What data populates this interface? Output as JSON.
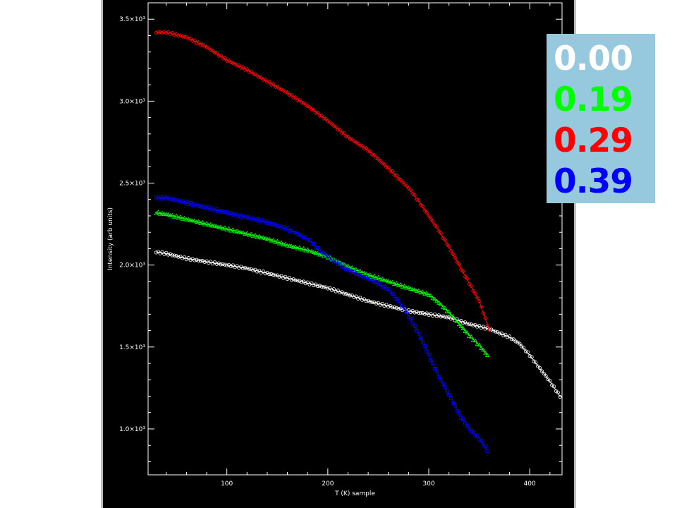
{
  "chart_data": {
    "type": "scatter",
    "xlabel": "T (K) sample",
    "ylabel": "Intensity (arb units)",
    "xlim": [
      22,
      432
    ],
    "ylim": [
      0.72,
      3.6
    ],
    "x_ticks": [
      100,
      200,
      300,
      400
    ],
    "x_tick_labels": [
      "100",
      "200",
      "300",
      "400"
    ],
    "y_ticks": [
      1.0,
      1.5,
      2.0,
      2.5,
      3.0,
      3.5
    ],
    "y_tick_labels": [
      "1.0×10³",
      "1.5×10³",
      "2.0×10³",
      "2.5×10³",
      "3.0×10³",
      "3.5×10³"
    ],
    "background": "#000000",
    "legend_position": "top-right",
    "legend_background": "#97c9de",
    "series": [
      {
        "name": "0.00",
        "color": "#ffffff",
        "marker": "circle",
        "x": [
          30,
          40,
          60,
          80,
          100,
          120,
          140,
          160,
          180,
          200,
          220,
          240,
          260,
          280,
          300,
          320,
          340,
          360,
          380,
          390,
          400,
          410,
          420,
          430
        ],
        "y": [
          2.08,
          2.07,
          2.04,
          2.02,
          2.0,
          1.98,
          1.95,
          1.92,
          1.89,
          1.86,
          1.82,
          1.78,
          1.75,
          1.72,
          1.7,
          1.68,
          1.64,
          1.61,
          1.56,
          1.52,
          1.45,
          1.37,
          1.29,
          1.2
        ]
      },
      {
        "name": "0.19",
        "color": "#00ff00",
        "marker": "triangle",
        "x": [
          30,
          40,
          60,
          80,
          100,
          120,
          140,
          160,
          180,
          200,
          220,
          240,
          260,
          280,
          300,
          310,
          320,
          330,
          340,
          350,
          358
        ],
        "y": [
          2.32,
          2.31,
          2.28,
          2.25,
          2.22,
          2.19,
          2.16,
          2.12,
          2.09,
          2.05,
          1.99,
          1.94,
          1.9,
          1.86,
          1.82,
          1.77,
          1.71,
          1.64,
          1.57,
          1.51,
          1.45
        ]
      },
      {
        "name": "0.29",
        "color": "#ff0000",
        "marker": "diamond",
        "x": [
          30,
          40,
          60,
          80,
          100,
          120,
          140,
          160,
          180,
          200,
          220,
          240,
          260,
          280,
          290,
          300,
          310,
          320,
          330,
          340,
          350,
          355,
          360
        ],
        "y": [
          3.42,
          3.42,
          3.39,
          3.33,
          3.25,
          3.19,
          3.12,
          3.05,
          2.97,
          2.88,
          2.78,
          2.7,
          2.59,
          2.47,
          2.39,
          2.3,
          2.21,
          2.11,
          2.0,
          1.89,
          1.78,
          1.69,
          1.6
        ]
      },
      {
        "name": "0.39",
        "color": "#0000ff",
        "marker": "square",
        "x": [
          30,
          40,
          60,
          80,
          100,
          120,
          140,
          160,
          180,
          190,
          200,
          220,
          240,
          260,
          270,
          280,
          290,
          300,
          310,
          320,
          330,
          340,
          350,
          358
        ],
        "y": [
          2.41,
          2.41,
          2.38,
          2.35,
          2.32,
          2.29,
          2.26,
          2.22,
          2.16,
          2.1,
          2.05,
          1.97,
          1.92,
          1.85,
          1.78,
          1.69,
          1.58,
          1.45,
          1.32,
          1.21,
          1.09,
          1.0,
          0.94,
          0.87
        ]
      }
    ]
  }
}
